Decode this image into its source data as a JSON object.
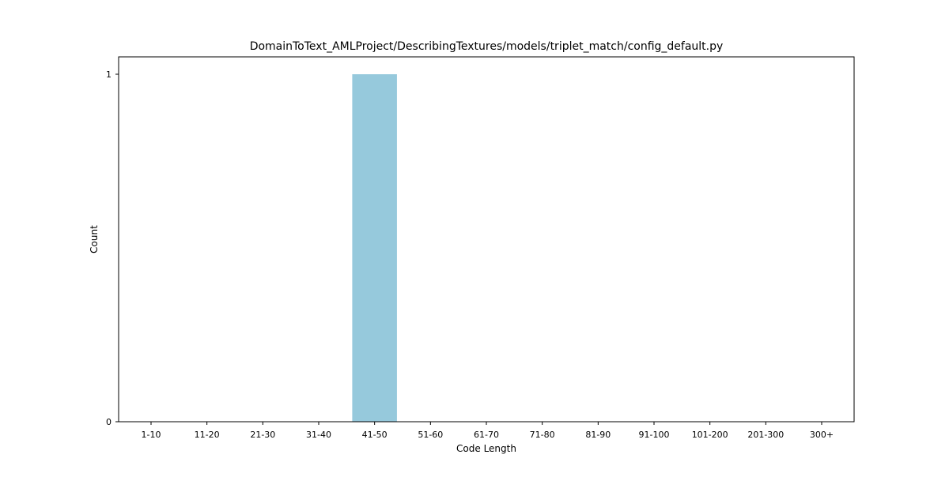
{
  "chart_data": {
    "type": "bar",
    "title": "DomainToText_AMLProject/DescribingTextures/models/triplet_match/config_default.py",
    "xlabel": "Code Length",
    "ylabel": "Count",
    "categories": [
      "1-10",
      "11-20",
      "21-30",
      "31-40",
      "41-50",
      "51-60",
      "61-70",
      "71-80",
      "81-90",
      "91-100",
      "101-200",
      "201-300",
      "300+"
    ],
    "values": [
      0,
      0,
      0,
      0,
      1,
      0,
      0,
      0,
      0,
      0,
      0,
      0,
      0
    ],
    "ylim": [
      0,
      1.05
    ],
    "yticks": [
      0,
      1
    ],
    "grid": false,
    "bar_color": "#96c9dc"
  }
}
